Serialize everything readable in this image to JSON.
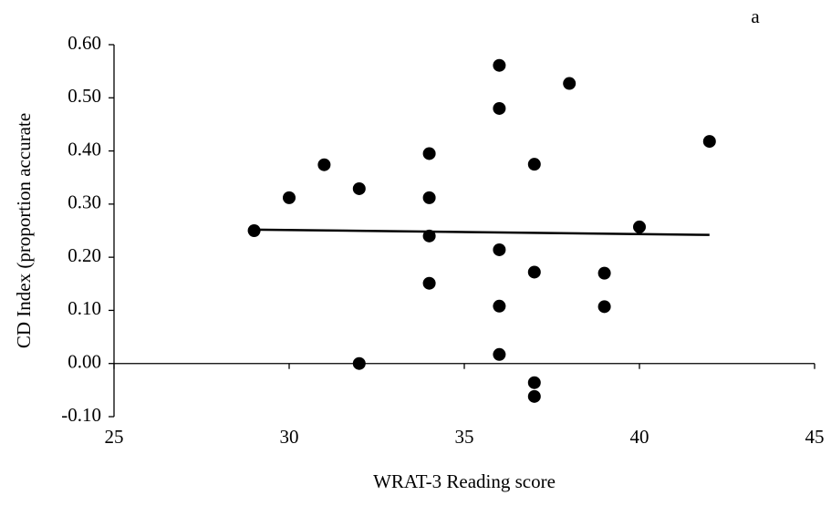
{
  "chart_data": {
    "type": "scatter",
    "annotation": "a",
    "x_label": "WRAT-3 Reading score",
    "y_label": "CD Index (proportion accurate",
    "x": [
      29,
      30,
      31,
      32,
      32,
      34,
      34,
      34,
      34,
      36,
      36,
      36,
      36,
      36,
      37,
      37,
      37,
      37,
      38,
      39,
      39,
      40,
      42
    ],
    "values": [
      0.25,
      0.312,
      0.374,
      0.329,
      0.0,
      0.395,
      0.312,
      0.24,
      0.151,
      0.561,
      0.48,
      0.214,
      0.108,
      0.017,
      0.375,
      0.172,
      -0.036,
      -0.062,
      0.527,
      0.17,
      0.107,
      0.257,
      0.418
    ],
    "color": "#000000",
    "trendline": {
      "x": [
        29,
        42
      ],
      "values": [
        0.252,
        0.242
      ]
    },
    "xlim": [
      25,
      45
    ],
    "xticks": [
      25,
      30,
      35,
      40,
      45
    ],
    "ylim": [
      -0.1,
      0.6
    ],
    "yticks": [
      {
        "value": -0.1,
        "label": "-0.10"
      },
      {
        "value": 0,
        "label": "0.00"
      },
      {
        "value": 0.1,
        "label": "0.10"
      },
      {
        "value": 0.2,
        "label": "0.20"
      },
      {
        "value": 0.3,
        "label": "0.30"
      },
      {
        "value": 0.4,
        "label": "0.40"
      },
      {
        "value": 0.5,
        "label": "0.50"
      },
      {
        "value": 0.6,
        "label": "0.60"
      }
    ],
    "grid": false
  }
}
